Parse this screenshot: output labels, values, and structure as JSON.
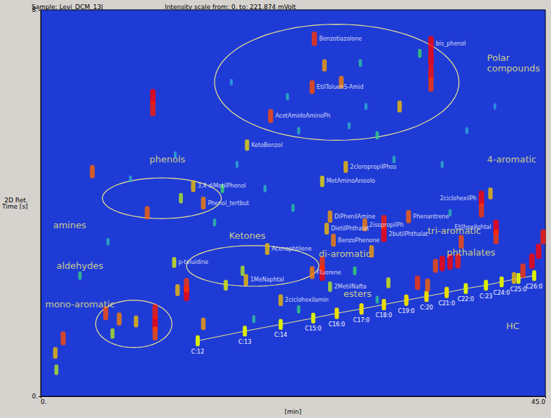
{
  "chart_data": {
    "type": "scatter",
    "title": "Sample: Levi_DCM_13J",
    "subtitle": "Intensity scale from: 0. to: 221.874 mVolt",
    "x_label": "[min]",
    "y_label": "2D Ret. Time [s]",
    "xlim": [
      0,
      45
    ],
    "ylim": [
      0,
      8
    ],
    "xticks": [
      {
        "value": 0,
        "label": "0."
      },
      {
        "value": 45,
        "label": "45.0"
      }
    ],
    "yticks": [
      {
        "value": 0,
        "label": "0."
      },
      {
        "value": 8,
        "label": "8."
      }
    ],
    "grid": false,
    "intensity_range": [
      0,
      221.874
    ],
    "peaks": [
      {
        "x": 24.4,
        "y": 7.4,
        "intensity": 200,
        "label": "Benzotiazolone"
      },
      {
        "x": 25.3,
        "y": 6.85,
        "intensity": 160
      },
      {
        "x": 24.2,
        "y": 6.4,
        "intensity": 190,
        "label": "EtilToluenS-Amid"
      },
      {
        "x": 26.8,
        "y": 6.5,
        "intensity": 170
      },
      {
        "x": 20.5,
        "y": 5.8,
        "intensity": 190,
        "label": "AcetAmidoAminoPh"
      },
      {
        "x": 32.0,
        "y": 6.0,
        "intensity": 150
      },
      {
        "x": 18.4,
        "y": 5.2,
        "intensity": 140,
        "label": "KetoBenzol"
      },
      {
        "x": 34.8,
        "y": 7.3,
        "intensity": 221,
        "label": "bis_phenol"
      },
      {
        "x": 34.8,
        "y": 7.0,
        "intensity": 221
      },
      {
        "x": 34.8,
        "y": 6.7,
        "intensity": 215
      },
      {
        "x": 34.8,
        "y": 6.45,
        "intensity": 200
      },
      {
        "x": 33.8,
        "y": 7.1,
        "intensity": 90
      },
      {
        "x": 10.0,
        "y": 6.2,
        "intensity": 221
      },
      {
        "x": 10.0,
        "y": 5.95,
        "intensity": 210
      },
      {
        "x": 4.6,
        "y": 4.65,
        "intensity": 180
      },
      {
        "x": 22.0,
        "y": 6.2,
        "intensity": 60
      },
      {
        "x": 28.5,
        "y": 6.9,
        "intensity": 70
      },
      {
        "x": 30.0,
        "y": 5.4,
        "intensity": 80
      },
      {
        "x": 23.0,
        "y": 5.5,
        "intensity": 60
      },
      {
        "x": 13.6,
        "y": 4.35,
        "intensity": 150,
        "label": "3,4 diMetilPhenol"
      },
      {
        "x": 14.5,
        "y": 4.0,
        "intensity": 170,
        "label": "Phenol_tertbut"
      },
      {
        "x": 9.5,
        "y": 3.8,
        "intensity": 180
      },
      {
        "x": 12.5,
        "y": 4.1,
        "intensity": 120
      },
      {
        "x": 16.2,
        "y": 4.3,
        "intensity": 90
      },
      {
        "x": 39.3,
        "y": 4.1,
        "intensity": 221,
        "label": "2ciclohexilPh"
      },
      {
        "x": 39.3,
        "y": 3.85,
        "intensity": 200
      },
      {
        "x": 40.1,
        "y": 4.2,
        "intensity": 150
      },
      {
        "x": 40.6,
        "y": 3.5,
        "intensity": 221,
        "label": "Etilhexilphtal"
      },
      {
        "x": 40.6,
        "y": 3.3,
        "intensity": 200
      },
      {
        "x": 27.2,
        "y": 4.75,
        "intensity": 150,
        "label": "2cloropropilPhos"
      },
      {
        "x": 25.1,
        "y": 4.45,
        "intensity": 140,
        "label": "MetAminoAnisolo"
      },
      {
        "x": 25.8,
        "y": 3.72,
        "intensity": 160,
        "label": "DiPhenilAmine"
      },
      {
        "x": 25.5,
        "y": 3.47,
        "intensity": 150,
        "label": "DietilPhthalat"
      },
      {
        "x": 26.1,
        "y": 3.23,
        "intensity": 170,
        "label": "BenzoPhenone"
      },
      {
        "x": 30.6,
        "y": 3.35,
        "intensity": 221,
        "label": "2butilPhthalat"
      },
      {
        "x": 30.6,
        "y": 3.6,
        "intensity": 210
      },
      {
        "x": 32.8,
        "y": 3.72,
        "intensity": 180,
        "label": "Phenantrene"
      },
      {
        "x": 28.9,
        "y": 3.55,
        "intensity": 170,
        "label": "2isopropilPh"
      },
      {
        "x": 37.5,
        "y": 3.2,
        "intensity": 190
      },
      {
        "x": 29.5,
        "y": 3.0,
        "intensity": 160
      },
      {
        "x": 11.9,
        "y": 2.77,
        "intensity": 130,
        "label": "p-toluidine"
      },
      {
        "x": 20.2,
        "y": 3.05,
        "intensity": 150,
        "label": "Acenaphtilene"
      },
      {
        "x": 24.2,
        "y": 2.56,
        "intensity": 170,
        "label": "Fluorene"
      },
      {
        "x": 25.1,
        "y": 2.55,
        "intensity": 221
      },
      {
        "x": 25.1,
        "y": 2.75,
        "intensity": 200
      },
      {
        "x": 25.8,
        "y": 2.27,
        "intensity": 120,
        "label": "2MetilNafta"
      },
      {
        "x": 18.3,
        "y": 2.41,
        "intensity": 150,
        "label": "1MeNaphtal"
      },
      {
        "x": 21.4,
        "y": 1.99,
        "intensity": 150,
        "label": "2ciclohexilamin"
      },
      {
        "x": 13.0,
        "y": 2.13,
        "intensity": 221
      },
      {
        "x": 13.0,
        "y": 2.3,
        "intensity": 200
      },
      {
        "x": 12.2,
        "y": 2.2,
        "intensity": 150
      },
      {
        "x": 10.2,
        "y": 1.5,
        "intensity": 221
      },
      {
        "x": 10.2,
        "y": 1.75,
        "intensity": 210
      },
      {
        "x": 10.2,
        "y": 1.3,
        "intensity": 190
      },
      {
        "x": 5.8,
        "y": 1.72,
        "intensity": 190
      },
      {
        "x": 7.0,
        "y": 1.6,
        "intensity": 170
      },
      {
        "x": 8.5,
        "y": 1.55,
        "intensity": 150
      },
      {
        "x": 6.4,
        "y": 1.3,
        "intensity": 120
      },
      {
        "x": 2.0,
        "y": 1.2,
        "intensity": 190
      },
      {
        "x": 1.3,
        "y": 0.9,
        "intensity": 150
      },
      {
        "x": 1.4,
        "y": 0.55,
        "intensity": 120
      },
      {
        "x": 14.5,
        "y": 1.5,
        "intensity": 160
      },
      {
        "x": 16.5,
        "y": 2.3,
        "intensity": 130
      },
      {
        "x": 18.0,
        "y": 2.6,
        "intensity": 120
      },
      {
        "x": 33.6,
        "y": 2.35,
        "intensity": 200
      },
      {
        "x": 34.5,
        "y": 2.3,
        "intensity": 180
      },
      {
        "x": 31.0,
        "y": 2.35,
        "intensity": 130
      },
      {
        "x": 35.8,
        "y": 2.75,
        "intensity": 221
      },
      {
        "x": 36.5,
        "y": 2.78,
        "intensity": 221
      },
      {
        "x": 37.2,
        "y": 2.8,
        "intensity": 210
      },
      {
        "x": 35.2,
        "y": 2.7,
        "intensity": 190
      },
      {
        "x": 43.0,
        "y": 2.6,
        "intensity": 200
      },
      {
        "x": 43.8,
        "y": 2.8,
        "intensity": 221
      },
      {
        "x": 44.4,
        "y": 3.0,
        "intensity": 221
      },
      {
        "x": 44.8,
        "y": 3.3,
        "intensity": 210
      },
      {
        "x": 42.2,
        "y": 2.45,
        "intensity": 150
      },
      {
        "x": 6.0,
        "y": 3.2,
        "intensity": 60
      },
      {
        "x": 8.0,
        "y": 4.5,
        "intensity": 50
      },
      {
        "x": 15.5,
        "y": 3.6,
        "intensity": 70
      },
      {
        "x": 17.5,
        "y": 4.8,
        "intensity": 50
      },
      {
        "x": 20.0,
        "y": 4.3,
        "intensity": 60
      },
      {
        "x": 22.5,
        "y": 3.9,
        "intensity": 70
      },
      {
        "x": 27.5,
        "y": 5.6,
        "intensity": 55
      },
      {
        "x": 31.5,
        "y": 4.9,
        "intensity": 60
      },
      {
        "x": 35.8,
        "y": 4.8,
        "intensity": 55
      },
      {
        "x": 38.0,
        "y": 5.5,
        "intensity": 50
      },
      {
        "x": 19.0,
        "y": 1.6,
        "intensity": 70
      },
      {
        "x": 23.0,
        "y": 1.8,
        "intensity": 80
      },
      {
        "x": 28.0,
        "y": 2.6,
        "intensity": 90
      },
      {
        "x": 30.0,
        "y": 2.0,
        "intensity": 70
      },
      {
        "x": 36.5,
        "y": 3.8,
        "intensity": 60
      },
      {
        "x": 12.0,
        "y": 5.0,
        "intensity": 50
      },
      {
        "x": 3.5,
        "y": 2.5,
        "intensity": 80
      },
      {
        "x": 17.0,
        "y": 6.5,
        "intensity": 45
      },
      {
        "x": 40.5,
        "y": 6.0,
        "intensity": 40
      },
      {
        "x": 29.0,
        "y": 6.0,
        "intensity": 50
      }
    ],
    "alkanes": {
      "line_style": "solid",
      "peaks": [
        {
          "x": 14.0,
          "y": 1.15,
          "intensity": 130,
          "label": "C:12"
        },
        {
          "x": 18.2,
          "y": 1.35,
          "intensity": 130,
          "label": "C:13"
        },
        {
          "x": 21.4,
          "y": 1.49,
          "intensity": 130,
          "label": "C:14"
        },
        {
          "x": 24.3,
          "y": 1.62,
          "intensity": 130,
          "label": "C15:0"
        },
        {
          "x": 26.4,
          "y": 1.72,
          "intensity": 140,
          "label": "C16:0"
        },
        {
          "x": 28.6,
          "y": 1.81,
          "intensity": 140,
          "label": "C17:0"
        },
        {
          "x": 30.6,
          "y": 1.9,
          "intensity": 140,
          "label": "C18:0"
        },
        {
          "x": 32.6,
          "y": 1.99,
          "intensity": 140,
          "label": "C19:0"
        },
        {
          "x": 34.4,
          "y": 2.07,
          "intensity": 140,
          "label": "C:20"
        },
        {
          "x": 36.2,
          "y": 2.15,
          "intensity": 140,
          "label": "C21:0"
        },
        {
          "x": 37.9,
          "y": 2.23,
          "intensity": 130,
          "label": "C22:0"
        },
        {
          "x": 39.7,
          "y": 2.3,
          "intensity": 130,
          "label": "C:23"
        },
        {
          "x": 41.1,
          "y": 2.37,
          "intensity": 130,
          "label": "C24:0"
        },
        {
          "x": 42.6,
          "y": 2.44,
          "intensity": 130,
          "label": "C25:0"
        },
        {
          "x": 44.0,
          "y": 2.5,
          "intensity": 130,
          "label": "C26:0"
        }
      ]
    },
    "annotations": [
      {
        "text": "Polar compounds",
        "x": 39.8,
        "y": 6.9
      },
      {
        "text": "phenols",
        "x": 9.7,
        "y": 4.9
      },
      {
        "text": "amines",
        "x": 1.1,
        "y": 3.55
      },
      {
        "text": "Ketones",
        "x": 16.8,
        "y": 3.33
      },
      {
        "text": "aldehydes",
        "x": 1.4,
        "y": 2.7
      },
      {
        "text": "di-aromatic",
        "x": 24.8,
        "y": 2.95
      },
      {
        "text": "tri-aromatic",
        "x": 34.5,
        "y": 3.43
      },
      {
        "text": "4-aromatic",
        "x": 39.8,
        "y": 4.9
      },
      {
        "text": "phthalates",
        "x": 36.2,
        "y": 2.98
      },
      {
        "text": "esters",
        "x": 27.0,
        "y": 2.13
      },
      {
        "text": "mono-aromatic",
        "x": 0.4,
        "y": 1.9
      },
      {
        "text": "HC",
        "x": 41.5,
        "y": 1.46
      }
    ],
    "regions": [
      {
        "x": 26.4,
        "y": 6.5,
        "rx": 10.9,
        "ry": 1.2
      },
      {
        "x": 10.8,
        "y": 4.1,
        "rx": 5.3,
        "ry": 0.42
      },
      {
        "x": 8.3,
        "y": 1.5,
        "rx": 3.4,
        "ry": 0.49
      },
      {
        "x": 18.9,
        "y": 2.7,
        "rx": 5.9,
        "ry": 0.42
      }
    ]
  }
}
